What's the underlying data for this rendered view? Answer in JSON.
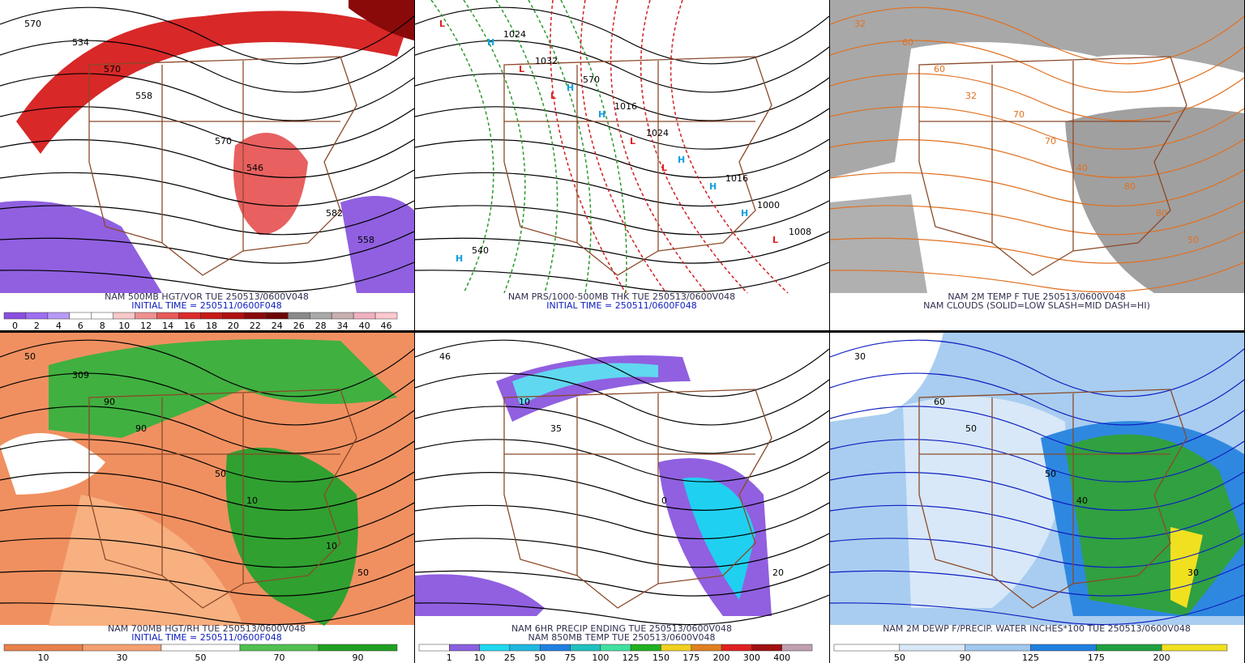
{
  "panels": [
    {
      "lines": [
        "NAM 500MB HGT/VOR TUE 250513/0600V048",
        "INITIAL TIME = 250511/0600F048"
      ],
      "colorbar": {
        "labels": [
          0,
          2,
          4,
          6,
          8,
          10,
          12,
          14,
          16,
          18,
          20,
          22,
          24,
          26,
          28,
          34,
          40,
          46
        ],
        "colors": [
          "#8a4fe0",
          "#9d6ff0",
          "#b79af5",
          "#ffffff",
          "#ffffff",
          "#f8c8c8",
          "#f09090",
          "#e85a5a",
          "#dc2b2b",
          "#c81818",
          "#b01010",
          "#8a0a0a",
          "#6e0606",
          "#8a8a8a",
          "#a8a8a8",
          "#c8b0b0",
          "#f0b0c0",
          "#ffc8d0"
        ]
      },
      "labels": [
        "570",
        "558",
        "546",
        "558",
        "570",
        "570",
        "582",
        "534"
      ]
    },
    {
      "lines": [
        "NAM PRS/1000-500MB THK TUE 250513/0600V048",
        "INITIAL TIME = 250511/0600F048"
      ],
      "labels": [
        "L",
        "L",
        "L",
        "L",
        "L",
        "L",
        "H",
        "H",
        "H",
        "H",
        "H",
        "H",
        "H",
        "1008",
        "1032",
        "1024",
        "1000",
        "1024",
        "1016",
        "1016",
        "540",
        "570"
      ]
    },
    {
      "lines": [
        "NAM 2M TEMP F TUE 250513/0600V048",
        "NAM CLOUDS (SOLID=LOW SLASH=MID DASH=HI)"
      ],
      "labels": [
        "32",
        "32",
        "40",
        "50",
        "60",
        "70",
        "80",
        "60",
        "70",
        "80"
      ]
    },
    {
      "lines": [
        "NAM 700MB HGT/RH TUE 250513/0600V048",
        "INITIAL TIME = 250511/0600F048"
      ],
      "colorbar": {
        "labels": [
          10,
          30,
          50,
          70,
          90
        ],
        "colors": [
          "#e8804a",
          "#f4a070",
          "#ffffff",
          "#50c050",
          "#20a020"
        ]
      },
      "labels": [
        "50",
        "90",
        "10",
        "50",
        "90",
        "50",
        "10",
        "309"
      ]
    },
    {
      "lines": [
        "NAM 6HR PRECIP ENDING TUE 250513/0600V048",
        "NAM 850MB TEMP TUE 250513/0600V048"
      ],
      "colorbar": {
        "labels": [
          1,
          10,
          25,
          50,
          75,
          100,
          125,
          150,
          175,
          200,
          300,
          400
        ],
        "colors": [
          "#ffffff",
          "#8a60e0",
          "#20d8f0",
          "#20b8e0",
          "#2080e0",
          "#20c0c0",
          "#40e0a0",
          "#20b020",
          "#f0d020",
          "#e08020",
          "#e02020",
          "#a01010",
          "#c0a0b0"
        ]
      },
      "labels": [
        "46",
        "35",
        "0",
        "20",
        "10"
      ]
    },
    {
      "lines": [
        "NAM 2M DEWP F/PRECIP. WATER INCHES*100 TUE 250513/0600V048"
      ],
      "colorbar": {
        "labels": [
          50,
          90,
          125,
          175,
          200
        ],
        "colors": [
          "#ffffff",
          "#d8e8f8",
          "#a0c8f0",
          "#2080e0",
          "#20a040",
          "#f0e020"
        ]
      },
      "labels": [
        "30",
        "50",
        "40",
        "30",
        "60",
        "50"
      ]
    }
  ]
}
